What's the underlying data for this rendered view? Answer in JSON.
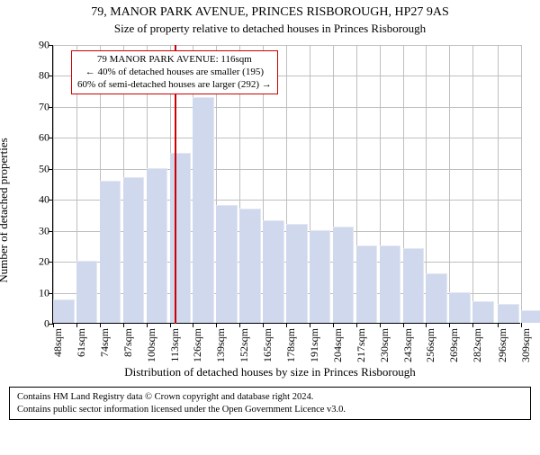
{
  "title": "79, MANOR PARK AVENUE, PRINCES RISBOROUGH, HP27 9AS",
  "subtitle": "Size of property relative to detached houses in Princes Risborough",
  "yaxis": {
    "label": "Number of detached properties",
    "min": 0,
    "max": 90,
    "step": 10,
    "ticks": [
      0,
      10,
      20,
      30,
      40,
      50,
      60,
      70,
      80,
      90
    ]
  },
  "xaxis": {
    "label": "Distribution of detached houses by size in Princes Risborough",
    "unit": "sqm",
    "tick_values": [
      48,
      61,
      74,
      87,
      100,
      113,
      126,
      139,
      152,
      165,
      178,
      191,
      204,
      217,
      230,
      243,
      256,
      269,
      282,
      296,
      309
    ]
  },
  "bars": {
    "values": [
      7.5,
      20,
      46,
      47,
      50,
      55,
      73,
      38,
      37,
      33,
      32,
      30,
      31,
      25,
      25,
      24,
      16,
      10,
      7,
      6,
      4
    ],
    "fill_color": "#cfd8ec",
    "border_color": "#e3e7f2",
    "width_fraction": 0.95
  },
  "highlight": {
    "x_value": 116,
    "line_color": "#cc0000"
  },
  "annotation": {
    "line1": "79 MANOR PARK AVENUE: 116sqm",
    "line2": "← 40% of detached houses are smaller (195)",
    "line3": "60% of semi-detached houses are larger (292) →",
    "border_color": "#cc0000"
  },
  "footer": {
    "line1": "Contains HM Land Registry data © Crown copyright and database right 2024.",
    "line2": "Contains public sector information licensed under the Open Government Licence v3.0."
  },
  "plot": {
    "background_color": "#ffffff",
    "grid_color": "#bfbfbf"
  }
}
